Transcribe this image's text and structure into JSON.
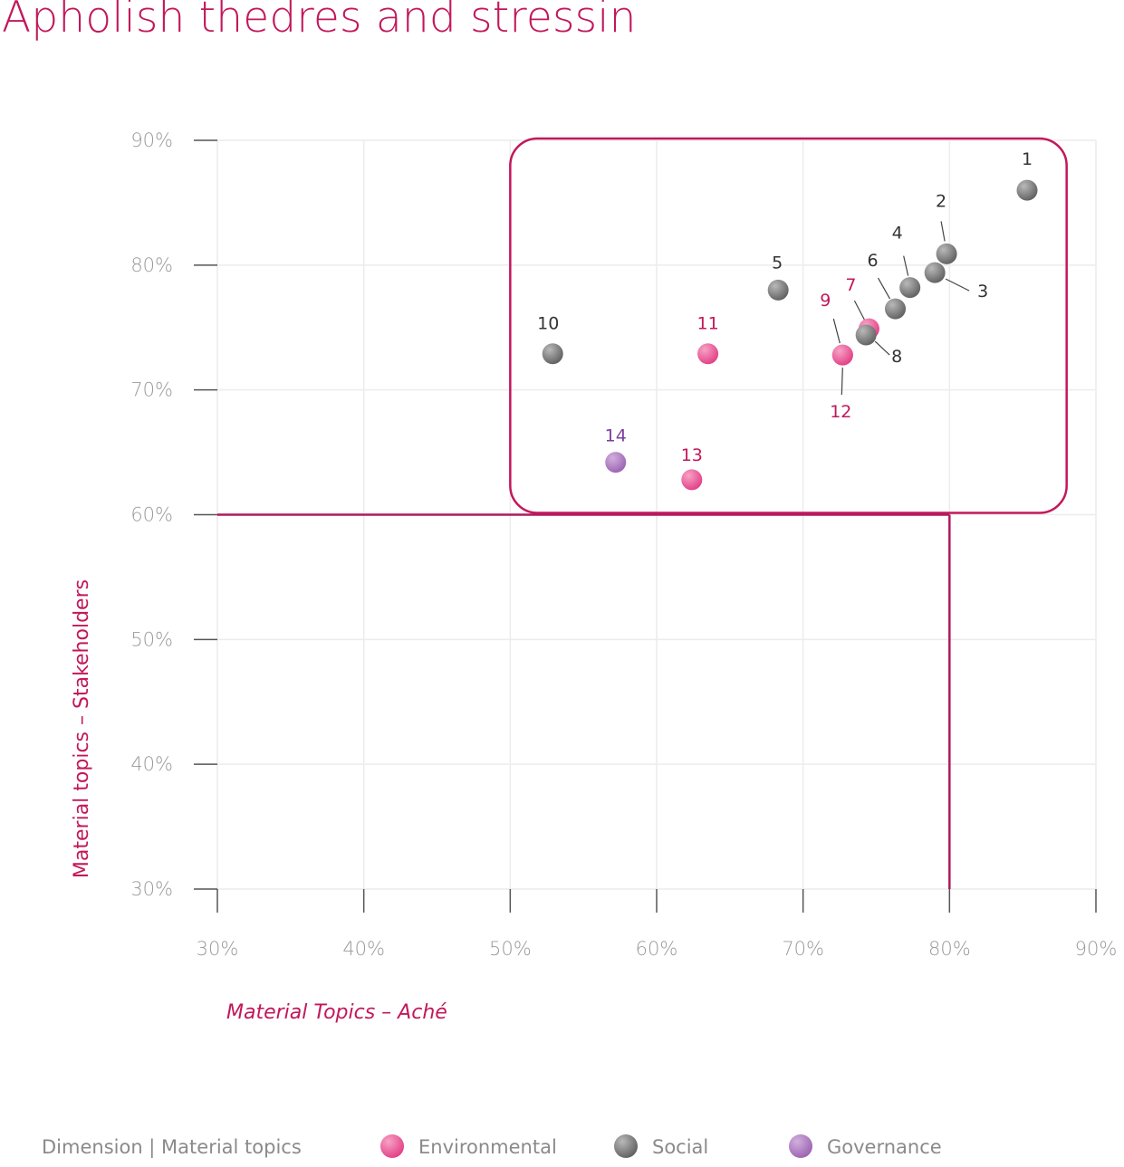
{
  "chart_data": {
    "type": "scatter",
    "title": "Apholish thedres and stressin",
    "xlabel": "Material Topics – Aché",
    "ylabel": "Material topics – Stakeholders",
    "xlim": [
      30,
      90
    ],
    "ylim": [
      30,
      90
    ],
    "x_ticks": [
      "30%",
      "40%",
      "50%",
      "60%",
      "70%",
      "80%",
      "90%"
    ],
    "y_ticks": [
      "30%",
      "40%",
      "50%",
      "60%",
      "70%",
      "80%",
      "90%"
    ],
    "grid": true,
    "thresholds": {
      "x": 80,
      "y": 60
    },
    "highlight_region": {
      "x": [
        50,
        88
      ],
      "y": [
        60,
        90
      ]
    },
    "points": [
      {
        "label": "1",
        "x": 85.3,
        "y": 86.0,
        "dimension": "Social"
      },
      {
        "label": "2",
        "x": 79.8,
        "y": 80.9,
        "dimension": "Social"
      },
      {
        "label": "3",
        "x": 79.0,
        "y": 79.4,
        "dimension": "Social"
      },
      {
        "label": "4",
        "x": 77.3,
        "y": 78.2,
        "dimension": "Social"
      },
      {
        "label": "5",
        "x": 68.3,
        "y": 78.0,
        "dimension": "Social"
      },
      {
        "label": "6",
        "x": 76.3,
        "y": 76.5,
        "dimension": "Social"
      },
      {
        "label": "7",
        "x": 74.5,
        "y": 74.9,
        "dimension": "Environmental"
      },
      {
        "label": "8",
        "x": 74.3,
        "y": 74.4,
        "dimension": "Social"
      },
      {
        "label": "9",
        "x": 72.7,
        "y": 72.8,
        "dimension": "Environmental"
      },
      {
        "label": "10",
        "x": 52.9,
        "y": 72.9,
        "dimension": "Social"
      },
      {
        "label": "11",
        "x": 63.5,
        "y": 72.9,
        "dimension": "Environmental"
      },
      {
        "label": "12",
        "x": 72.7,
        "y": 72.8,
        "dimension": "Environmental"
      },
      {
        "label": "13",
        "x": 62.4,
        "y": 62.8,
        "dimension": "Environmental"
      },
      {
        "label": "14",
        "x": 57.2,
        "y": 64.2,
        "dimension": "Governance"
      }
    ],
    "legend": {
      "title": "Dimension | Material topics",
      "placement": "bottom",
      "items": [
        {
          "name": "Environmental",
          "color": "#e8428a"
        },
        {
          "name": "Social",
          "color": "#6e6e6e"
        },
        {
          "name": "Governance",
          "color": "#a66fb8"
        }
      ]
    },
    "colors": {
      "accent": "#c2185b",
      "Environmental": "#e8428a",
      "Social": "#6e6e6e",
      "Governance": "#a66fb8",
      "label_Environmental": "#c2185b",
      "label_Social": "#333333",
      "label_Governance": "#7b3f9e"
    }
  }
}
